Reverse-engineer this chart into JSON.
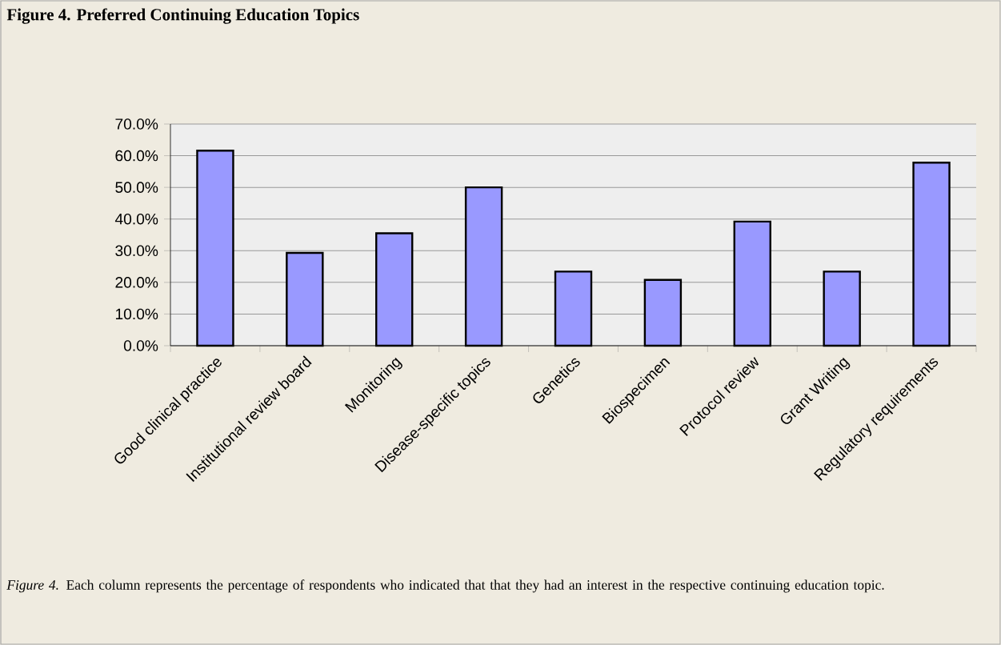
{
  "chart_data": {
    "type": "bar",
    "title": "Figure 4. Preferred Continuing Education Topics",
    "categories": [
      "Good clinical practice",
      "Institutional review board",
      "Monitoring",
      "Disease-specific topics",
      "Genetics",
      "Biospecimen",
      "Protocol review",
      "Grant Writing",
      "Regulatory requirements"
    ],
    "values": [
      61.6,
      29.3,
      35.5,
      50.0,
      23.4,
      20.8,
      39.2,
      23.4,
      57.8
    ],
    "color": "#9999ff",
    "ylim": [
      0,
      70
    ],
    "yticks": [
      {
        "value": 0,
        "label": "0.0%"
      },
      {
        "value": 10,
        "label": "10.0%"
      },
      {
        "value": 20,
        "label": "20.0%"
      },
      {
        "value": 30,
        "label": "30.0%"
      },
      {
        "value": 40,
        "label": "40.0%"
      },
      {
        "value": 50,
        "label": "50.0%"
      },
      {
        "value": 60,
        "label": "60.0%"
      },
      {
        "value": 70,
        "label": "70.0%"
      }
    ],
    "grid": "y",
    "annotations": [
      "*Figure 4.* Each column represents the percentage of respondents who indicated that that they had an interest in the respective continuing education topic."
    ]
  }
}
